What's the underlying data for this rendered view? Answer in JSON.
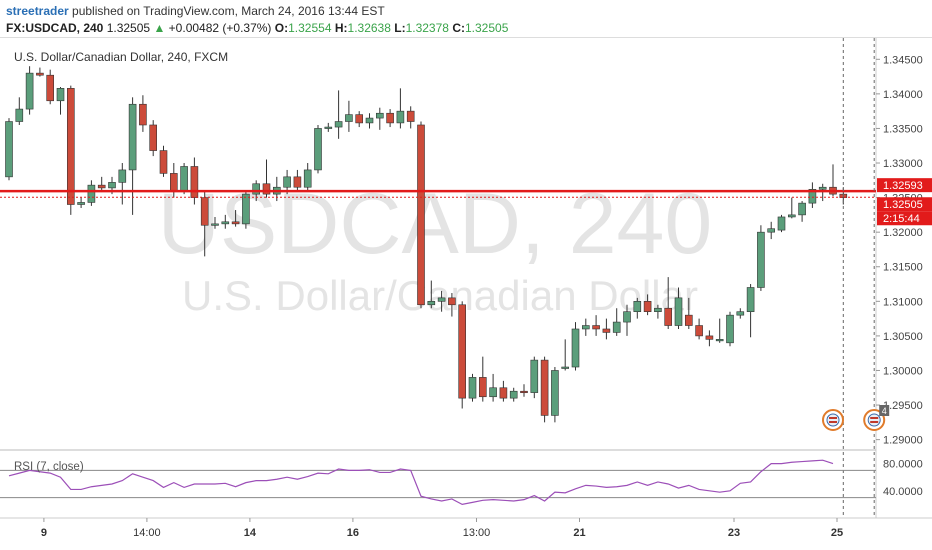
{
  "header": {
    "user": "streetrader",
    "published_text": " published on TradingView.com, March 24, 2016 13:44 EST",
    "symbol": "FX:USDCAD, 240",
    "price": "1.32505",
    "change_arrow": "▲",
    "change": "+0.00482 (+0.37%)",
    "o_label": "O:",
    "o_value": "1.32554",
    "h_label": "H:",
    "h_value": "1.32638",
    "l_label": "L:",
    "l_value": "1.32378",
    "c_label": "C:",
    "c_value": "1.32505"
  },
  "chart_data": {
    "type": "candlestick",
    "title": "U.S. Dollar/Canadian Dollar, 240, FXCM",
    "watermark_symbol": "USDCAD, 240",
    "watermark_name": "U.S. Dollar/Canadian Dollar",
    "ylim": [
      1.2885,
      1.3475
    ],
    "y_ticks": [
      "1.34500",
      "1.34000",
      "1.33500",
      "1.33000",
      "1.32500",
      "1.32000",
      "1.31500",
      "1.31000",
      "1.30500",
      "1.30000",
      "1.29500",
      "1.29000"
    ],
    "x_ticks": [
      {
        "label": "9",
        "bold": true,
        "index": 3
      },
      {
        "label": "14:00",
        "bold": false,
        "index": 13
      },
      {
        "label": "14",
        "bold": true,
        "index": 23
      },
      {
        "label": "16",
        "bold": true,
        "index": 33
      },
      {
        "label": "13:00",
        "bold": false,
        "index": 45
      },
      {
        "label": "21",
        "bold": true,
        "index": 55
      },
      {
        "label": "23",
        "bold": true,
        "index": 70
      },
      {
        "label": "25",
        "bold": true,
        "index": 80
      }
    ],
    "candles": [
      {
        "o": 1.328,
        "h": 1.3365,
        "l": 1.3275,
        "c": 1.336
      },
      {
        "o": 1.336,
        "h": 1.3395,
        "l": 1.3355,
        "c": 1.3378
      },
      {
        "o": 1.3378,
        "h": 1.344,
        "l": 1.337,
        "c": 1.343
      },
      {
        "o": 1.343,
        "h": 1.3438,
        "l": 1.3425,
        "c": 1.3427
      },
      {
        "o": 1.3427,
        "h": 1.3435,
        "l": 1.3385,
        "c": 1.339
      },
      {
        "o": 1.339,
        "h": 1.341,
        "l": 1.337,
        "c": 1.3408
      },
      {
        "o": 1.3408,
        "h": 1.3412,
        "l": 1.3225,
        "c": 1.324
      },
      {
        "o": 1.324,
        "h": 1.325,
        "l": 1.3235,
        "c": 1.3243
      },
      {
        "o": 1.3243,
        "h": 1.3275,
        "l": 1.3238,
        "c": 1.3268
      },
      {
        "o": 1.3268,
        "h": 1.328,
        "l": 1.3258,
        "c": 1.3264
      },
      {
        "o": 1.3264,
        "h": 1.328,
        "l": 1.3255,
        "c": 1.3272
      },
      {
        "o": 1.3272,
        "h": 1.33,
        "l": 1.324,
        "c": 1.329
      },
      {
        "o": 1.329,
        "h": 1.3395,
        "l": 1.3225,
        "c": 1.3385
      },
      {
        "o": 1.3385,
        "h": 1.3398,
        "l": 1.3345,
        "c": 1.3355
      },
      {
        "o": 1.3355,
        "h": 1.3362,
        "l": 1.331,
        "c": 1.3318
      },
      {
        "o": 1.3318,
        "h": 1.3325,
        "l": 1.328,
        "c": 1.3285
      },
      {
        "o": 1.3285,
        "h": 1.33,
        "l": 1.325,
        "c": 1.326
      },
      {
        "o": 1.326,
        "h": 1.33,
        "l": 1.3255,
        "c": 1.3295
      },
      {
        "o": 1.3295,
        "h": 1.3308,
        "l": 1.324,
        "c": 1.325
      },
      {
        "o": 1.325,
        "h": 1.326,
        "l": 1.3165,
        "c": 1.321
      },
      {
        "o": 1.321,
        "h": 1.3222,
        "l": 1.3205,
        "c": 1.3212
      },
      {
        "o": 1.3212,
        "h": 1.3225,
        "l": 1.3205,
        "c": 1.3215
      },
      {
        "o": 1.3215,
        "h": 1.3232,
        "l": 1.3208,
        "c": 1.3212
      },
      {
        "o": 1.3212,
        "h": 1.326,
        "l": 1.3205,
        "c": 1.3255
      },
      {
        "o": 1.3255,
        "h": 1.3275,
        "l": 1.3245,
        "c": 1.327
      },
      {
        "o": 1.327,
        "h": 1.3305,
        "l": 1.325,
        "c": 1.3255
      },
      {
        "o": 1.3255,
        "h": 1.328,
        "l": 1.3245,
        "c": 1.3265
      },
      {
        "o": 1.3265,
        "h": 1.329,
        "l": 1.3255,
        "c": 1.328
      },
      {
        "o": 1.328,
        "h": 1.329,
        "l": 1.326,
        "c": 1.3265
      },
      {
        "o": 1.3265,
        "h": 1.33,
        "l": 1.326,
        "c": 1.329
      },
      {
        "o": 1.329,
        "h": 1.3355,
        "l": 1.3285,
        "c": 1.335
      },
      {
        "o": 1.335,
        "h": 1.3358,
        "l": 1.3345,
        "c": 1.3352
      },
      {
        "o": 1.3352,
        "h": 1.3405,
        "l": 1.3335,
        "c": 1.336
      },
      {
        "o": 1.336,
        "h": 1.339,
        "l": 1.3345,
        "c": 1.337
      },
      {
        "o": 1.337,
        "h": 1.3375,
        "l": 1.3352,
        "c": 1.3358
      },
      {
        "o": 1.3358,
        "h": 1.3372,
        "l": 1.335,
        "c": 1.3365
      },
      {
        "o": 1.3365,
        "h": 1.338,
        "l": 1.3348,
        "c": 1.3372
      },
      {
        "o": 1.3372,
        "h": 1.3378,
        "l": 1.3352,
        "c": 1.3358
      },
      {
        "o": 1.3358,
        "h": 1.3408,
        "l": 1.335,
        "c": 1.3375
      },
      {
        "o": 1.3375,
        "h": 1.3382,
        "l": 1.335,
        "c": 1.336
      },
      {
        "o": 1.3355,
        "h": 1.336,
        "l": 1.309,
        "c": 1.3095
      },
      {
        "o": 1.3095,
        "h": 1.313,
        "l": 1.309,
        "c": 1.31
      },
      {
        "o": 1.31,
        "h": 1.3115,
        "l": 1.3085,
        "c": 1.3105
      },
      {
        "o": 1.3105,
        "h": 1.3112,
        "l": 1.3078,
        "c": 1.3095
      },
      {
        "o": 1.3095,
        "h": 1.31,
        "l": 1.2945,
        "c": 1.296
      },
      {
        "o": 1.296,
        "h": 1.2995,
        "l": 1.2955,
        "c": 1.299
      },
      {
        "o": 1.299,
        "h": 1.302,
        "l": 1.2955,
        "c": 1.2962
      },
      {
        "o": 1.2962,
        "h": 1.2995,
        "l": 1.2955,
        "c": 1.2975
      },
      {
        "o": 1.2975,
        "h": 1.2985,
        "l": 1.2955,
        "c": 1.296
      },
      {
        "o": 1.296,
        "h": 1.2975,
        "l": 1.2955,
        "c": 1.297
      },
      {
        "o": 1.297,
        "h": 1.298,
        "l": 1.2962,
        "c": 1.2968
      },
      {
        "o": 1.2968,
        "h": 1.302,
        "l": 1.296,
        "c": 1.3015
      },
      {
        "o": 1.3015,
        "h": 1.302,
        "l": 1.2925,
        "c": 1.2935
      },
      {
        "o": 1.2935,
        "h": 1.3005,
        "l": 1.2925,
        "c": 1.3
      },
      {
        "o": 1.3003,
        "h": 1.3045,
        "l": 1.3,
        "c": 1.3005
      },
      {
        "o": 1.3005,
        "h": 1.307,
        "l": 1.3,
        "c": 1.306
      },
      {
        "o": 1.306,
        "h": 1.3075,
        "l": 1.305,
        "c": 1.3065
      },
      {
        "o": 1.3065,
        "h": 1.308,
        "l": 1.305,
        "c": 1.306
      },
      {
        "o": 1.306,
        "h": 1.3075,
        "l": 1.3045,
        "c": 1.3055
      },
      {
        "o": 1.3055,
        "h": 1.309,
        "l": 1.305,
        "c": 1.307
      },
      {
        "o": 1.307,
        "h": 1.3095,
        "l": 1.305,
        "c": 1.3085
      },
      {
        "o": 1.3085,
        "h": 1.3105,
        "l": 1.3075,
        "c": 1.31
      },
      {
        "o": 1.31,
        "h": 1.311,
        "l": 1.308,
        "c": 1.3085
      },
      {
        "o": 1.3085,
        "h": 1.3095,
        "l": 1.3075,
        "c": 1.309
      },
      {
        "o": 1.309,
        "h": 1.3135,
        "l": 1.306,
        "c": 1.3065
      },
      {
        "o": 1.3065,
        "h": 1.312,
        "l": 1.306,
        "c": 1.3105
      },
      {
        "o": 1.308,
        "h": 1.3105,
        "l": 1.306,
        "c": 1.3065
      },
      {
        "o": 1.3065,
        "h": 1.3075,
        "l": 1.3045,
        "c": 1.305
      },
      {
        "o": 1.305,
        "h": 1.3058,
        "l": 1.3035,
        "c": 1.3045
      },
      {
        "o": 1.3045,
        "h": 1.3075,
        "l": 1.304,
        "c": 1.3045
      },
      {
        "o": 1.304,
        "h": 1.3085,
        "l": 1.3035,
        "c": 1.308
      },
      {
        "o": 1.308,
        "h": 1.309,
        "l": 1.3075,
        "c": 1.3085
      },
      {
        "o": 1.3085,
        "h": 1.3125,
        "l": 1.3048,
        "c": 1.312
      },
      {
        "o": 1.312,
        "h": 1.321,
        "l": 1.3115,
        "c": 1.32
      },
      {
        "o": 1.32,
        "h": 1.3215,
        "l": 1.319,
        "c": 1.3205
      },
      {
        "o": 1.3203,
        "h": 1.3225,
        "l": 1.32,
        "c": 1.3222
      },
      {
        "o": 1.3222,
        "h": 1.325,
        "l": 1.322,
        "c": 1.3225
      },
      {
        "o": 1.3225,
        "h": 1.3245,
        "l": 1.3215,
        "c": 1.3242
      },
      {
        "o": 1.3242,
        "h": 1.3272,
        "l": 1.3235,
        "c": 1.3262
      },
      {
        "o": 1.3262,
        "h": 1.327,
        "l": 1.3245,
        "c": 1.3265
      },
      {
        "o": 1.3265,
        "h": 1.3298,
        "l": 1.3252,
        "c": 1.3255
      },
      {
        "o": 1.3255,
        "h": 1.3265,
        "l": 1.324,
        "c": 1.325
      }
    ],
    "resistance_line": 1.32593,
    "current_price": 1.32505,
    "price_labels": {
      "resistance": "1.32593",
      "current": "1.32505",
      "countdown": "2:15:44"
    },
    "events": [
      {
        "index": 80,
        "badge": ""
      },
      {
        "index": 84,
        "badge": "4"
      }
    ],
    "rsi": {
      "label": "RSI (7, close)",
      "ylim": [
        0,
        100
      ],
      "ticks": [
        "80.0000",
        "40.0000"
      ],
      "levels": [
        70,
        30
      ],
      "values": [
        62,
        66,
        70,
        68,
        66,
        60,
        42,
        42,
        46,
        48,
        50,
        55,
        65,
        60,
        55,
        45,
        52,
        45,
        50,
        50,
        50,
        51,
        46,
        52,
        55,
        55,
        57,
        60,
        57,
        61,
        66,
        65,
        72,
        70,
        70,
        71,
        67,
        67,
        72,
        70,
        32,
        28,
        25,
        28,
        20,
        23,
        26,
        27,
        26,
        25,
        27,
        33,
        25,
        38,
        37,
        43,
        48,
        47,
        45,
        46,
        48,
        53,
        48,
        53,
        50,
        44,
        48,
        42,
        40,
        38,
        40,
        51,
        53,
        68,
        80,
        80,
        82,
        83,
        84,
        85,
        80
      ]
    },
    "colors": {
      "up": "#5b9e7b",
      "down": "#cc4b3a",
      "resistance": "#e21b1b",
      "rsi": "#9c4fb8"
    }
  }
}
